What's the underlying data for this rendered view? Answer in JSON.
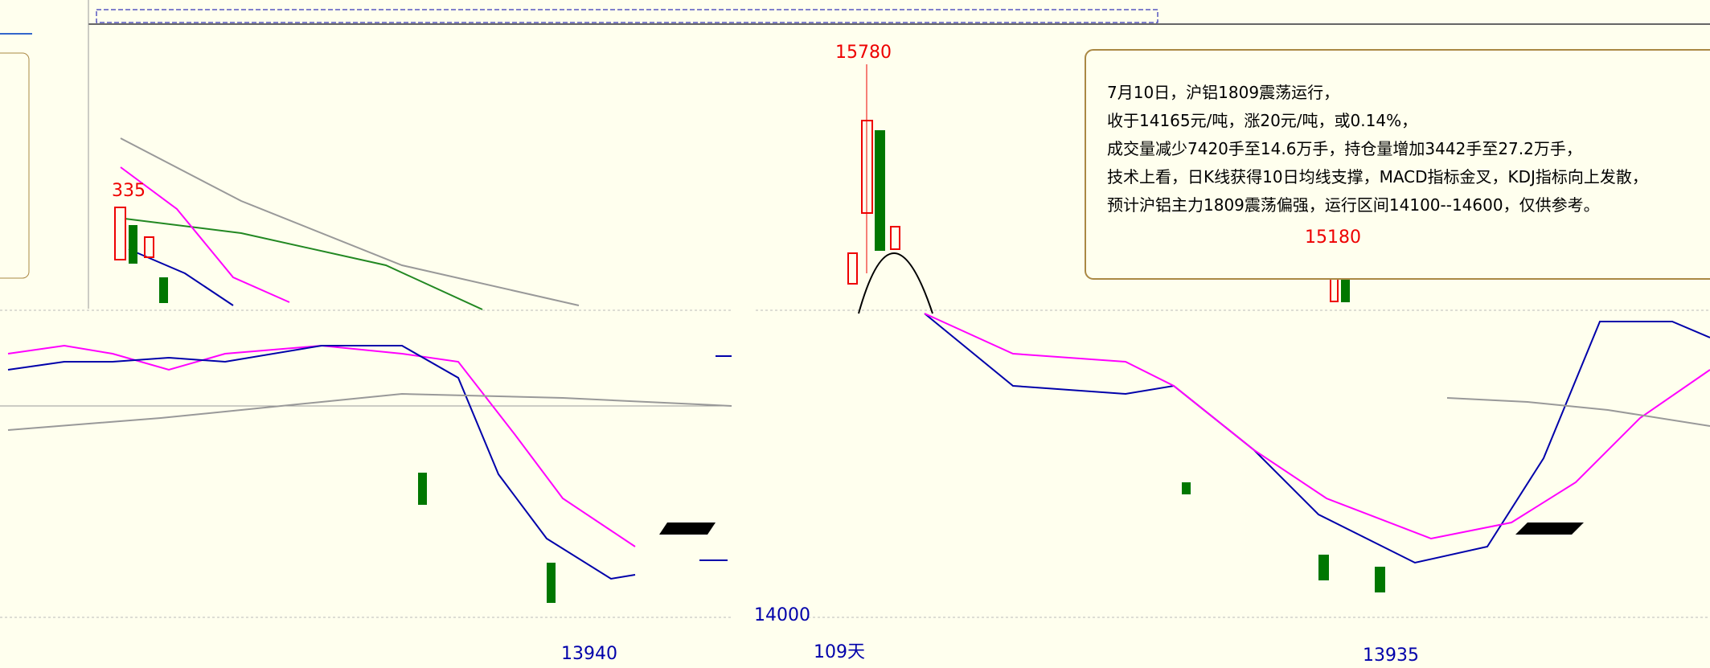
{
  "price_labels": {
    "high_center": "15780",
    "high_right": "15180",
    "high_left": "335"
  },
  "axis": {
    "price_level": "14000",
    "days": "109天"
  },
  "low_labels": {
    "left": "13940",
    "right": "13935"
  },
  "annotation": {
    "lines": [
      "7月10日，沪铝1809震荡运行，",
      "收于14165元/吨，涨20元/吨，或0.14%，",
      "成交量减少7420手至14.6万手，持仓量增加3442手至27.2万手，",
      "技术上看，日K线获得10日均线支撑，MACD指标金叉，KDJ指标向上发散，",
      "预计沪铝主力1809震荡偏强，运行区间14100--14600，仅供参考。"
    ]
  }
}
